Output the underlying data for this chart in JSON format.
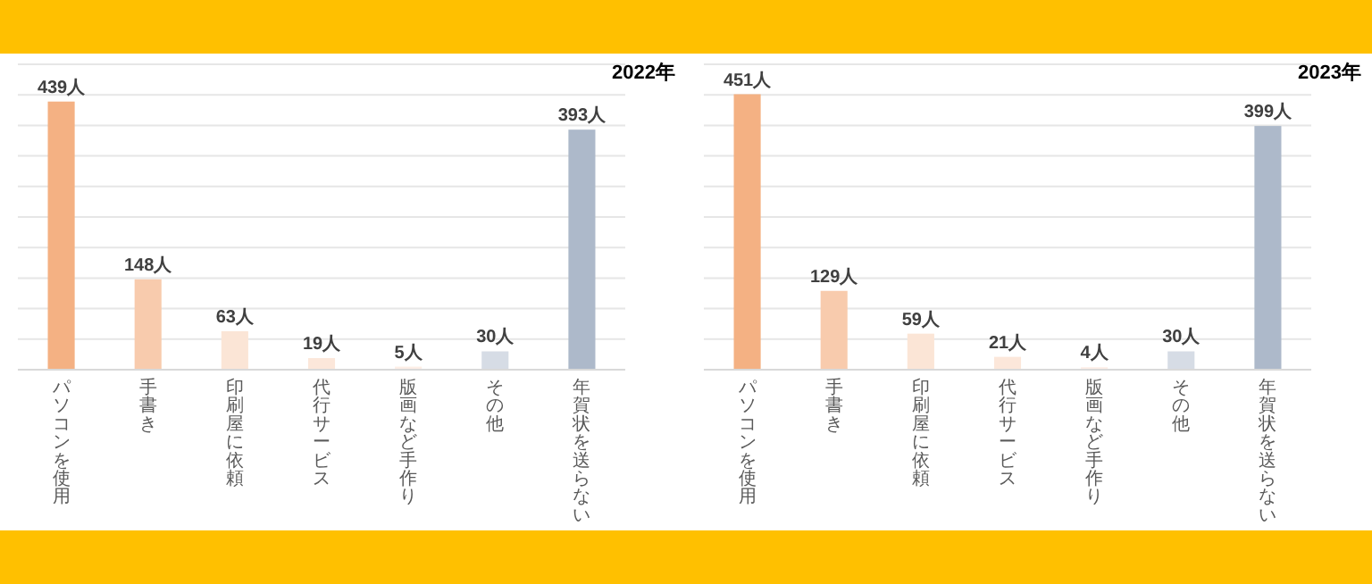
{
  "chart_data": [
    {
      "type": "bar",
      "title": "2022年",
      "categories": [
        "パソコンを使用",
        "手書き",
        "印刷屋に依頼",
        "代行サービス",
        "版画など手作り",
        "その他",
        "年賀状を送らない"
      ],
      "values": [
        439,
        148,
        63,
        19,
        5,
        30,
        393
      ],
      "value_labels": [
        "439人",
        "148人",
        "63人",
        "19人",
        "5人",
        "30人",
        "393人"
      ],
      "colors": [
        "#f4b183",
        "#f8cbad",
        "#fbe5d6",
        "#fce7da",
        "#fdeee6",
        "#d6dce5",
        "#adb9ca"
      ],
      "ylim": [
        0,
        500
      ],
      "yticks": [
        {
          "value": 0,
          "label": null
        },
        {
          "value": 50,
          "label": null
        },
        {
          "value": 100,
          "label": null
        },
        {
          "value": 150,
          "label": null
        },
        {
          "value": 200,
          "label": null
        },
        {
          "value": 250,
          "label": null
        },
        {
          "value": 300,
          "label": null
        },
        {
          "value": 350,
          "label": null
        },
        {
          "value": 400,
          "label": null
        },
        {
          "value": 450,
          "label": null
        },
        {
          "value": 500,
          "label": null
        }
      ],
      "grid": "y"
    },
    {
      "type": "bar",
      "title": "2023年",
      "categories": [
        "パソコンを使用",
        "手書き",
        "印刷屋に依頼",
        "代行サービス",
        "版画など手作り",
        "その他",
        "年賀状を送らない"
      ],
      "values": [
        451,
        129,
        59,
        21,
        4,
        30,
        399
      ],
      "value_labels": [
        "451人",
        "129人",
        "59人",
        "21人",
        "4人",
        "30人",
        "399人"
      ],
      "colors": [
        "#f4b183",
        "#f8cbad",
        "#fbe5d6",
        "#fce7da",
        "#fdeee6",
        "#d6dce5",
        "#adb9ca"
      ],
      "ylim": [
        0,
        500
      ],
      "yticks": [
        {
          "value": 0,
          "label": null
        },
        {
          "value": 50,
          "label": null
        },
        {
          "value": 100,
          "label": null
        },
        {
          "value": 150,
          "label": null
        },
        {
          "value": 200,
          "label": null
        },
        {
          "value": 250,
          "label": null
        },
        {
          "value": 300,
          "label": null
        },
        {
          "value": 350,
          "label": null
        },
        {
          "value": 400,
          "label": null
        },
        {
          "value": 450,
          "label": null
        },
        {
          "value": 500,
          "label": null
        }
      ],
      "grid": "y"
    }
  ]
}
